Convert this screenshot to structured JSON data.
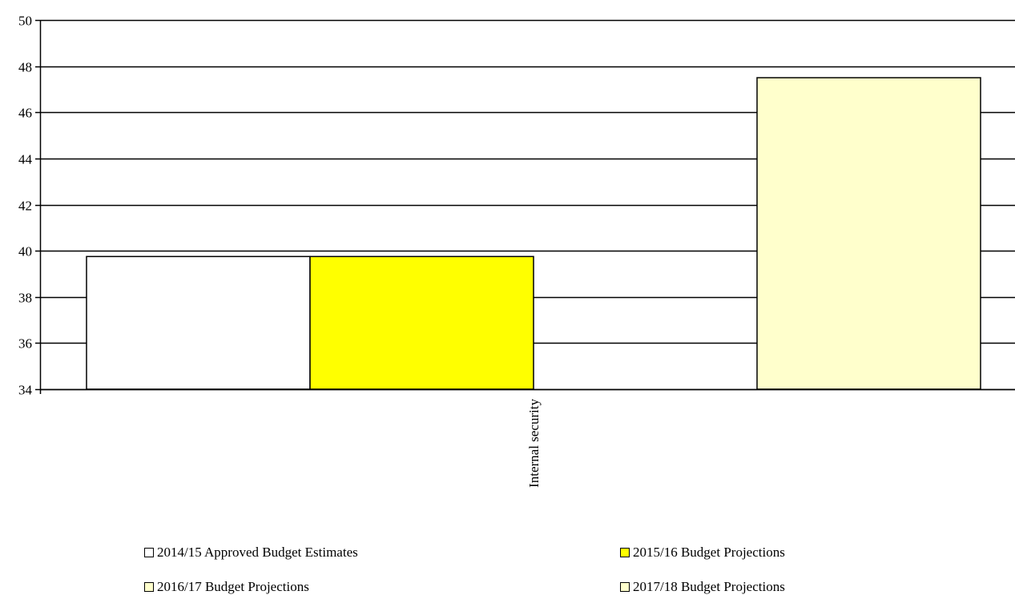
{
  "chart_data": {
    "type": "bar",
    "categories": [
      "Internal security"
    ],
    "series": [
      {
        "name": "2014/15 Approved Budget Estimates",
        "values": [
          39.75
        ],
        "color": "#FFFFFF"
      },
      {
        "name": "2015/16 Budget Projections",
        "values": [
          39.75
        ],
        "color": "#FFFF00"
      },
      {
        "name": "2016/17 Budget Projections",
        "values": [
          null
        ],
        "color": "#FFFFCC"
      },
      {
        "name": "2017/18 Budget Projections",
        "values": [
          47.5
        ],
        "color": "#FFFFCC"
      }
    ],
    "ylim": [
      34,
      50
    ],
    "yticks": [
      34,
      36,
      38,
      40,
      42,
      44,
      46,
      48,
      50
    ],
    "grid": true,
    "legend_position": "bottom",
    "title": "",
    "xlabel": "",
    "ylabel": ""
  }
}
